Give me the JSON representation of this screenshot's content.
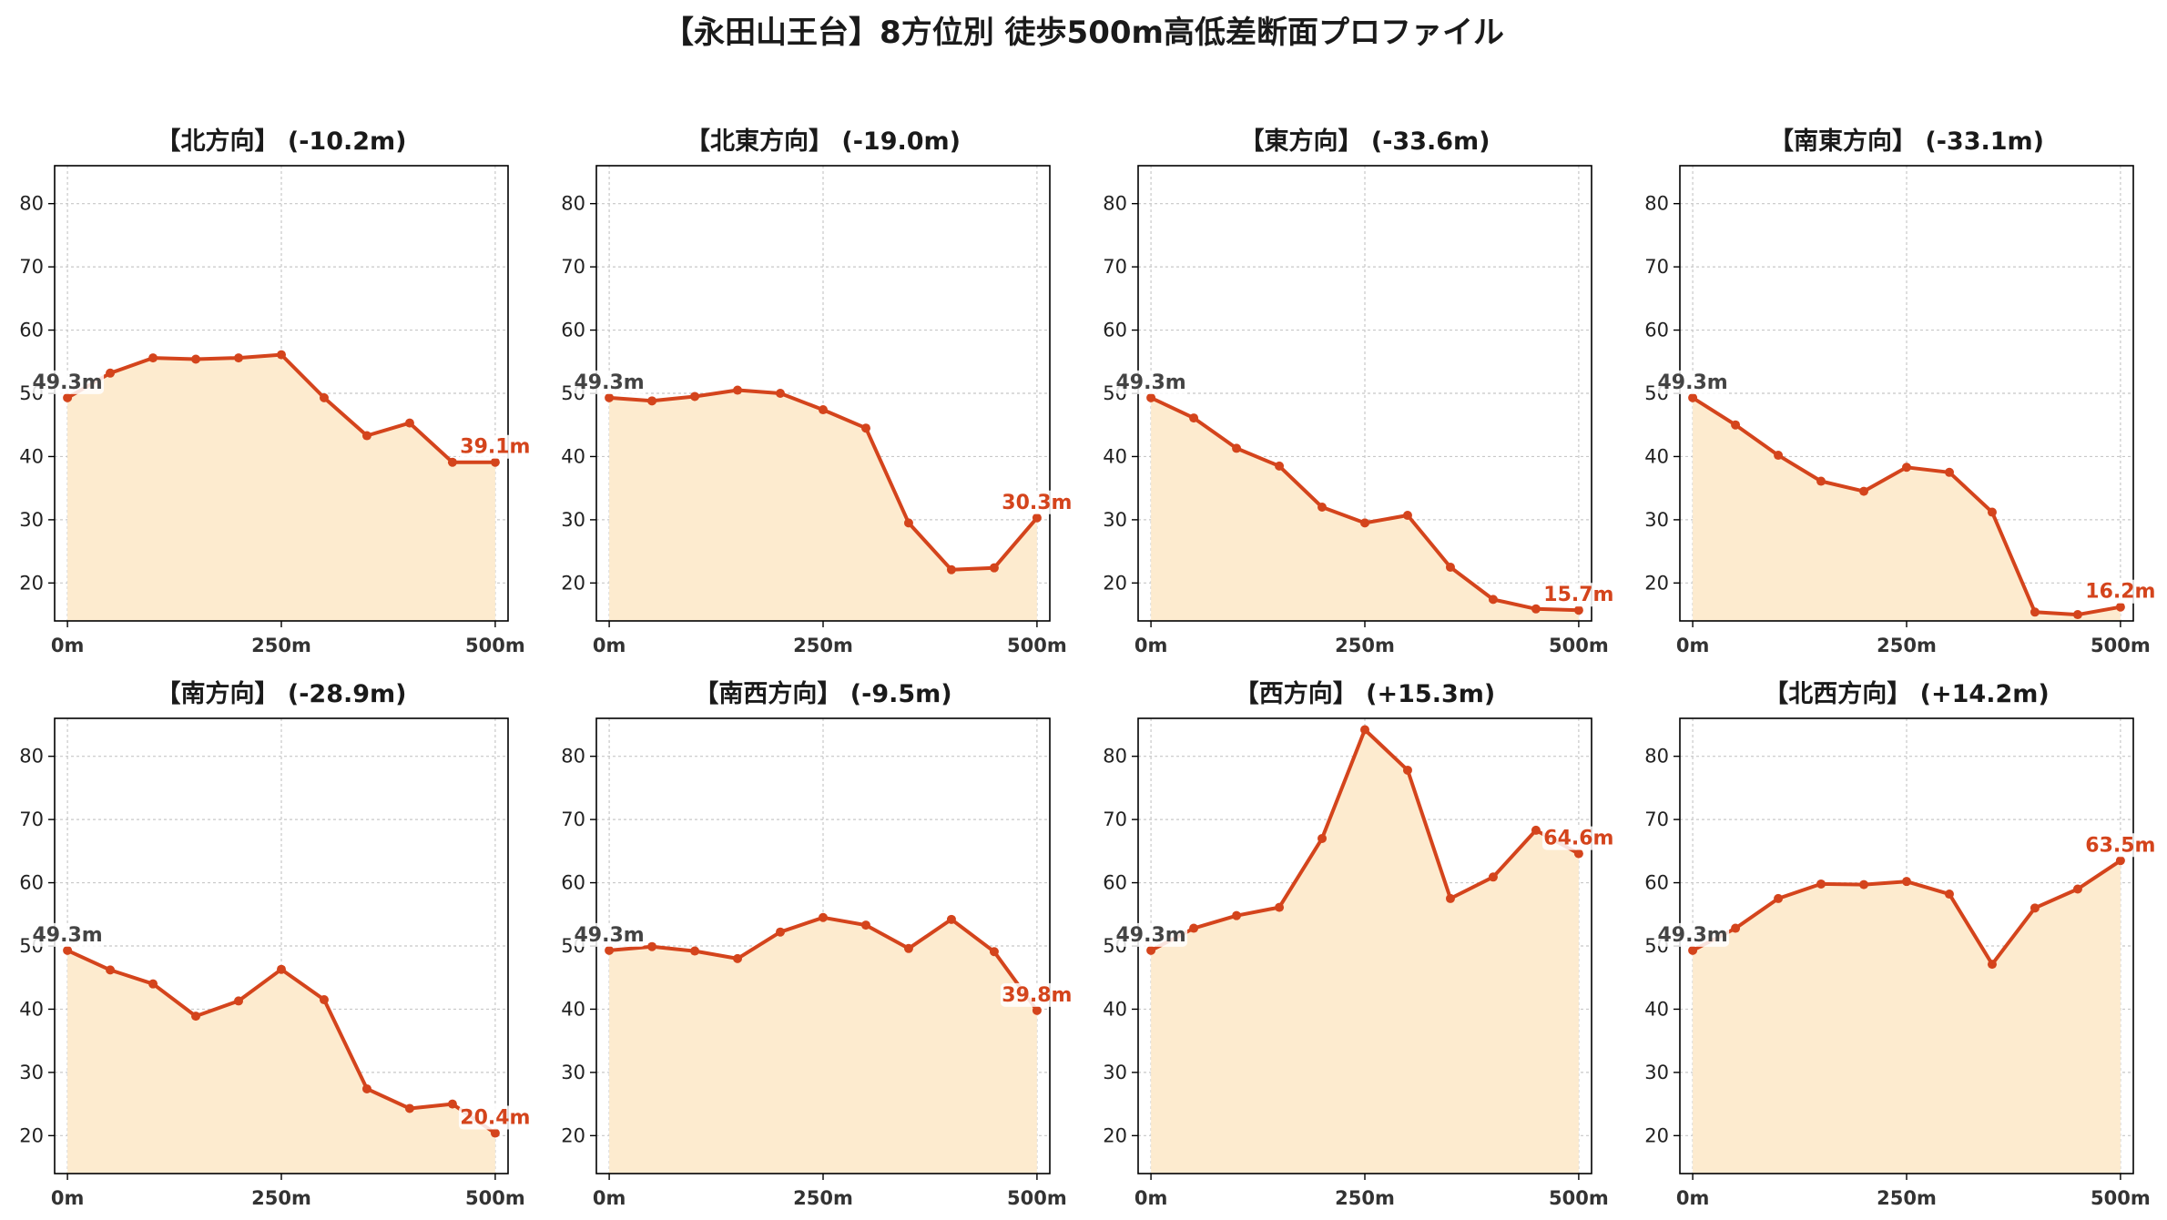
{
  "title": "【永田山王台】8方位別 徒歩500m高低差断面プロファイル",
  "colors": {
    "line": "#d4441c",
    "fill": "#fdebcf",
    "grid": "#c8c8c8",
    "start_label": "#444444",
    "end_label": "#d4441c"
  },
  "chart_data": [
    {
      "type": "area",
      "title": "【北方向】 (-10.2m)",
      "x": [
        0,
        50,
        100,
        150,
        200,
        250,
        300,
        350,
        400,
        450,
        500
      ],
      "values": [
        49.3,
        53.2,
        55.6,
        55.4,
        55.6,
        56.1,
        49.3,
        43.3,
        45.3,
        39.1,
        39.1
      ],
      "start_label": "49.3m",
      "end_label": "39.1m",
      "yticks": [
        20,
        30,
        40,
        50,
        60,
        70,
        80
      ],
      "xticks": [
        "0m",
        "250m",
        "500m"
      ],
      "ylim": [
        14,
        86
      ],
      "xlim": [
        -15,
        515
      ],
      "grid": true
    },
    {
      "type": "area",
      "title": "【北東方向】 (-19.0m)",
      "x": [
        0,
        50,
        100,
        150,
        200,
        250,
        300,
        350,
        400,
        450,
        500
      ],
      "values": [
        49.3,
        48.8,
        49.5,
        50.5,
        50.0,
        47.4,
        44.5,
        29.5,
        22.1,
        22.4,
        30.3
      ],
      "start_label": "49.3m",
      "end_label": "30.3m",
      "yticks": [
        20,
        30,
        40,
        50,
        60,
        70,
        80
      ],
      "xticks": [
        "0m",
        "250m",
        "500m"
      ],
      "ylim": [
        14,
        86
      ],
      "xlim": [
        -15,
        515
      ],
      "grid": true
    },
    {
      "type": "area",
      "title": "【東方向】 (-33.6m)",
      "x": [
        0,
        50,
        100,
        150,
        200,
        250,
        300,
        350,
        400,
        450,
        500
      ],
      "values": [
        49.3,
        46.1,
        41.3,
        38.5,
        32.0,
        29.5,
        30.7,
        22.5,
        17.4,
        15.9,
        15.7
      ],
      "start_label": "49.3m",
      "end_label": "15.7m",
      "yticks": [
        20,
        30,
        40,
        50,
        60,
        70,
        80
      ],
      "xticks": [
        "0m",
        "250m",
        "500m"
      ],
      "ylim": [
        14,
        86
      ],
      "xlim": [
        -15,
        515
      ],
      "grid": true
    },
    {
      "type": "area",
      "title": "【南東方向】 (-33.1m)",
      "x": [
        0,
        50,
        100,
        150,
        200,
        250,
        300,
        350,
        400,
        450,
        500
      ],
      "values": [
        49.3,
        45.0,
        40.2,
        36.1,
        34.5,
        38.3,
        37.5,
        31.2,
        15.4,
        15.0,
        16.2
      ],
      "start_label": "49.3m",
      "end_label": "16.2m",
      "yticks": [
        20,
        30,
        40,
        50,
        60,
        70,
        80
      ],
      "xticks": [
        "0m",
        "250m",
        "500m"
      ],
      "ylim": [
        14,
        86
      ],
      "xlim": [
        -15,
        515
      ],
      "grid": true
    },
    {
      "type": "area",
      "title": "【南方向】 (-28.9m)",
      "x": [
        0,
        50,
        100,
        150,
        200,
        250,
        300,
        350,
        400,
        450,
        500
      ],
      "values": [
        49.3,
        46.2,
        44.0,
        38.9,
        41.3,
        46.3,
        41.5,
        27.4,
        24.3,
        25.0,
        20.4
      ],
      "start_label": "49.3m",
      "end_label": "20.4m",
      "yticks": [
        20,
        30,
        40,
        50,
        60,
        70,
        80
      ],
      "xticks": [
        "0m",
        "250m",
        "500m"
      ],
      "ylim": [
        14,
        86
      ],
      "xlim": [
        -15,
        515
      ],
      "grid": true
    },
    {
      "type": "area",
      "title": "【南西方向】 (-9.5m)",
      "x": [
        0,
        50,
        100,
        150,
        200,
        250,
        300,
        350,
        400,
        450,
        500
      ],
      "values": [
        49.3,
        49.9,
        49.2,
        48.0,
        52.2,
        54.5,
        53.3,
        49.6,
        54.2,
        49.1,
        39.8
      ],
      "start_label": "49.3m",
      "end_label": "39.8m",
      "yticks": [
        20,
        30,
        40,
        50,
        60,
        70,
        80
      ],
      "xticks": [
        "0m",
        "250m",
        "500m"
      ],
      "ylim": [
        14,
        86
      ],
      "xlim": [
        -15,
        515
      ],
      "grid": true
    },
    {
      "type": "area",
      "title": "【西方向】 (+15.3m)",
      "x": [
        0,
        50,
        100,
        150,
        200,
        250,
        300,
        350,
        400,
        450,
        500
      ],
      "values": [
        49.3,
        52.8,
        54.8,
        56.1,
        67.0,
        84.2,
        77.8,
        57.5,
        60.9,
        68.3,
        64.6
      ],
      "start_label": "49.3m",
      "end_label": "64.6m",
      "yticks": [
        20,
        30,
        40,
        50,
        60,
        70,
        80
      ],
      "xticks": [
        "0m",
        "250m",
        "500m"
      ],
      "ylim": [
        14,
        86
      ],
      "xlim": [
        -15,
        515
      ],
      "grid": true
    },
    {
      "type": "area",
      "title": "【北西方向】 (+14.2m)",
      "x": [
        0,
        50,
        100,
        150,
        200,
        250,
        300,
        350,
        400,
        450,
        500
      ],
      "values": [
        49.3,
        52.8,
        57.5,
        59.8,
        59.7,
        60.2,
        58.2,
        47.1,
        56.0,
        59.0,
        63.5
      ],
      "start_label": "49.3m",
      "end_label": "63.5m",
      "yticks": [
        20,
        30,
        40,
        50,
        60,
        70,
        80
      ],
      "xticks": [
        "0m",
        "250m",
        "500m"
      ],
      "ylim": [
        14,
        86
      ],
      "xlim": [
        -15,
        515
      ],
      "grid": true
    }
  ]
}
